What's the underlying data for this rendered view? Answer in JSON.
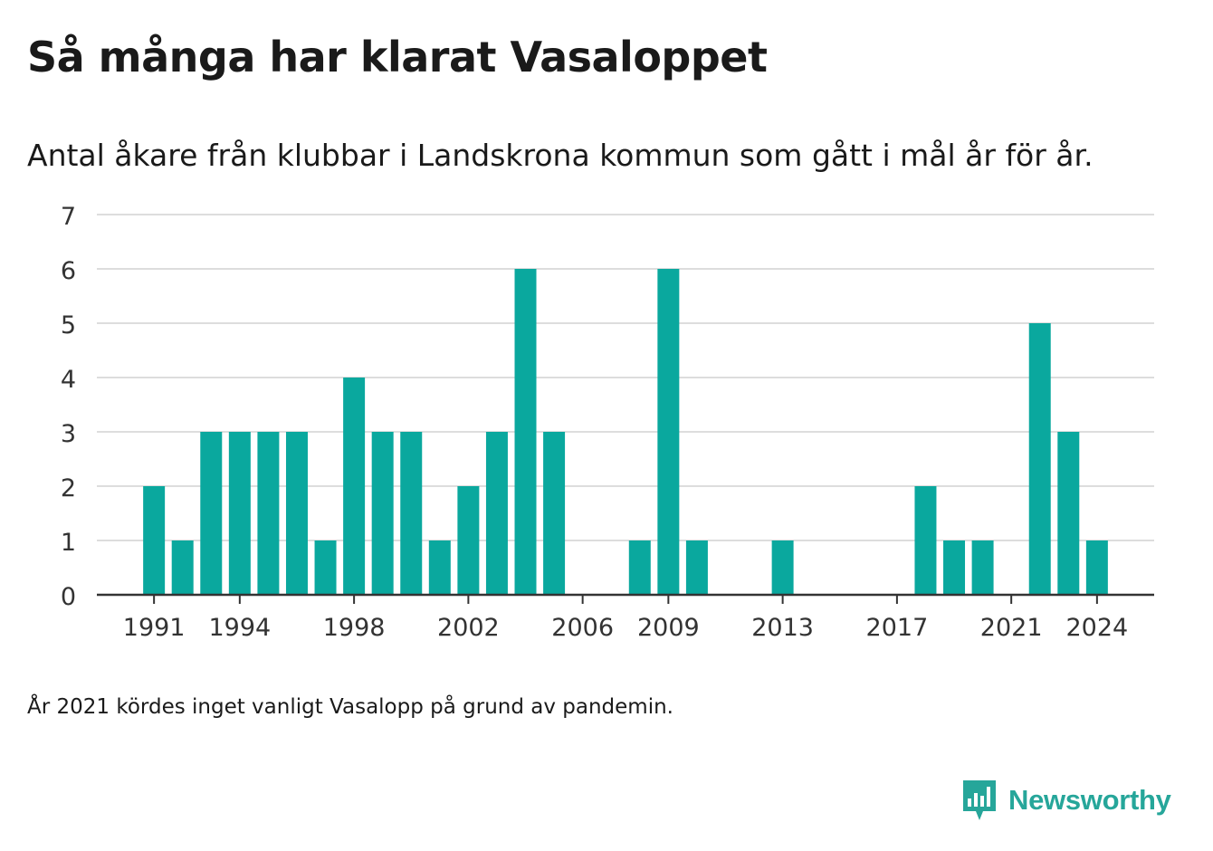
{
  "title": "Så många har klarat Vasaloppet",
  "subtitle": "Antal åkare från klubbar i Landskrona kommun som gått i mål år för år.",
  "footnote": "År 2021 kördes inget vanligt Vasalopp på grund av pandemin.",
  "brand": {
    "name": "Newsworthy",
    "icon": "newsworthy-logo-icon",
    "color": "#26a69a"
  },
  "colors": {
    "bar": "#0aa89e",
    "grid": "#dddddd",
    "axis": "#333333"
  },
  "chart_data": {
    "type": "bar",
    "categories": [
      1991,
      1992,
      1993,
      1994,
      1995,
      1996,
      1997,
      1998,
      1999,
      2000,
      2001,
      2002,
      2003,
      2004,
      2005,
      2006,
      2007,
      2008,
      2009,
      2010,
      2011,
      2012,
      2013,
      2014,
      2015,
      2016,
      2017,
      2018,
      2019,
      2020,
      2021,
      2022,
      2023,
      2024
    ],
    "values": [
      2,
      1,
      3,
      3,
      3,
      3,
      1,
      4,
      3,
      3,
      1,
      2,
      3,
      6,
      3,
      0,
      0,
      1,
      6,
      1,
      0,
      0,
      1,
      0,
      0,
      0,
      0,
      2,
      1,
      1,
      0,
      5,
      3,
      1
    ],
    "x_ticks": [
      1991,
      1994,
      1998,
      2002,
      2006,
      2009,
      2013,
      2017,
      2021,
      2024
    ],
    "y_ticks": [
      0,
      1,
      2,
      3,
      4,
      5,
      6,
      7
    ],
    "ylim": [
      0,
      7
    ],
    "xlim": [
      1989,
      2026
    ],
    "grid": true,
    "xlabel": "",
    "ylabel": ""
  }
}
